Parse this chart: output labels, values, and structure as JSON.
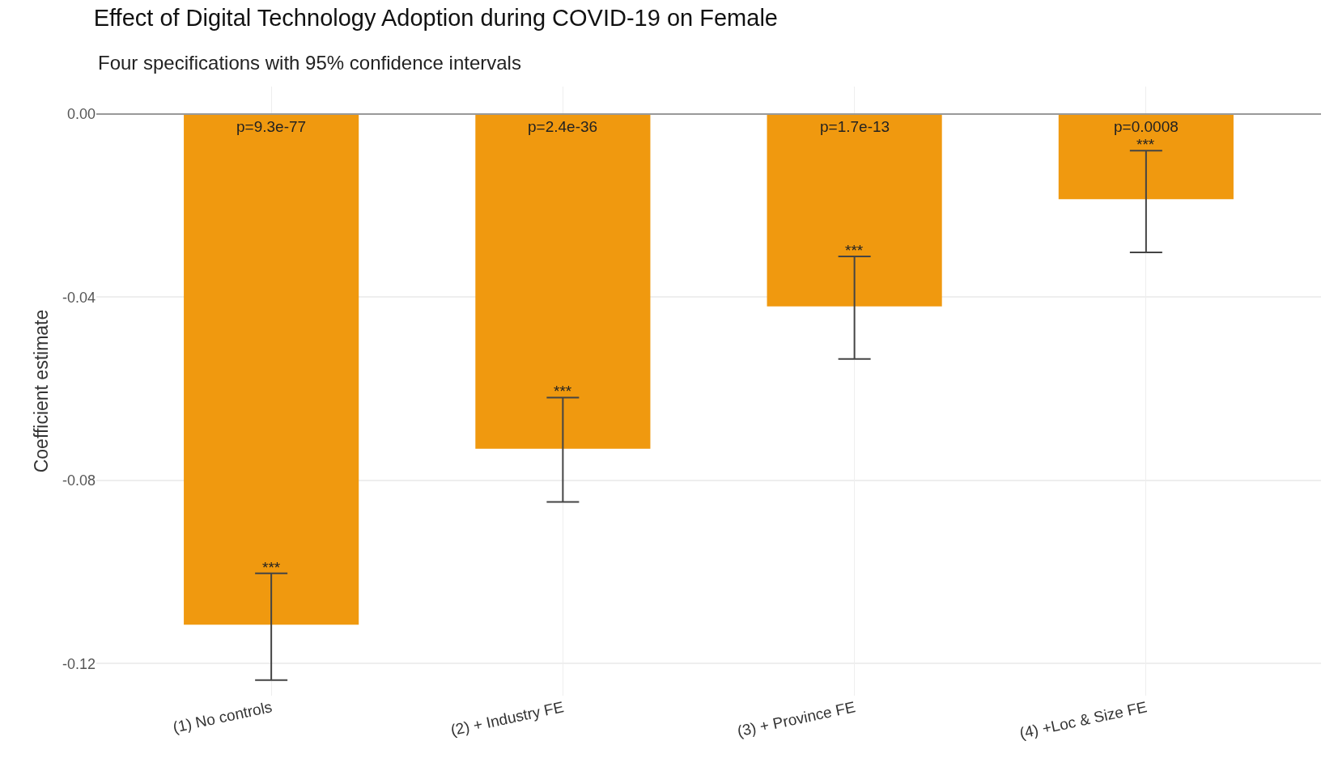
{
  "chart_data": {
    "type": "bar",
    "title": "Effect of Digital Technology Adoption during COVID-19 on Female",
    "subtitle": "Four specifications with 95% confidence intervals",
    "ylabel": "Coefficient estimate",
    "categories": [
      "(1) No controls",
      "(2) + Industry FE",
      "(3) + Province FE",
      "(4) +Loc & Size FE"
    ],
    "values": [
      -0.1115,
      -0.0731,
      -0.042,
      -0.0186
    ],
    "color": "#f0990f",
    "errors": [
      [
        -0.1236,
        -0.1003
      ],
      [
        -0.0847,
        -0.0619
      ],
      [
        -0.0535,
        -0.0311
      ],
      [
        -0.0302,
        -0.008
      ]
    ],
    "ylim": [
      -0.127,
      0.006
    ],
    "yticks": [
      {
        "value": 0,
        "label": "0.00"
      },
      {
        "value": -0.04,
        "label": "-0.04"
      },
      {
        "value": -0.08,
        "label": "-0.08"
      },
      {
        "value": -0.12,
        "label": "-0.12"
      }
    ],
    "grid": true,
    "ref_lines": [
      {
        "axis": "y",
        "value": 0,
        "color": "#999999"
      }
    ],
    "annotations": [
      "p=9.3e-77",
      "p=2.4e-36",
      "p=1.7e-13",
      "p=0.0008",
      "***",
      "***",
      "***",
      "***"
    ]
  }
}
